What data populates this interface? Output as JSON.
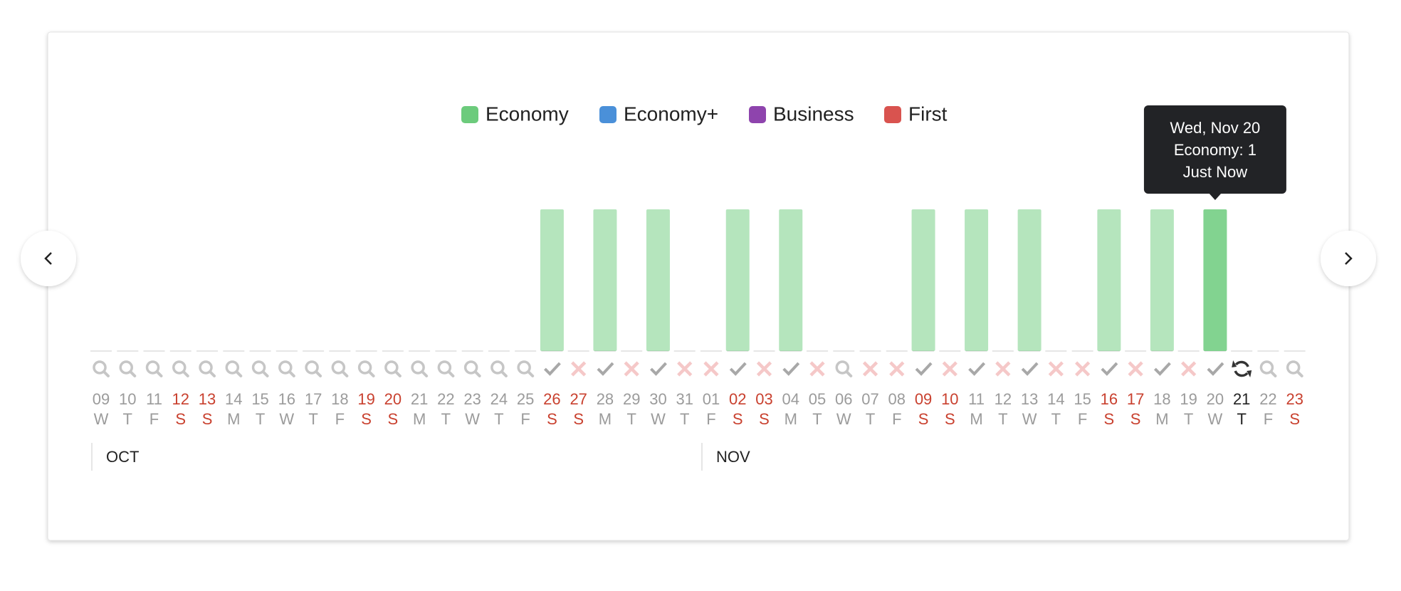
{
  "chart_data": {
    "type": "bar",
    "categories": [
      "09",
      "10",
      "11",
      "12",
      "13",
      "14",
      "15",
      "16",
      "17",
      "18",
      "19",
      "20",
      "21",
      "22",
      "23",
      "24",
      "25",
      "26",
      "27",
      "28",
      "29",
      "30",
      "31",
      "01",
      "02",
      "03",
      "04",
      "05",
      "06",
      "07",
      "08",
      "09",
      "10",
      "11",
      "12",
      "13",
      "14",
      "15",
      "16",
      "17",
      "18",
      "19",
      "20",
      "21",
      "22",
      "23"
    ],
    "weekdays": [
      "W",
      "T",
      "F",
      "S",
      "S",
      "M",
      "T",
      "W",
      "T",
      "F",
      "S",
      "S",
      "M",
      "T",
      "W",
      "T",
      "F",
      "S",
      "S",
      "M",
      "T",
      "W",
      "T",
      "F",
      "S",
      "S",
      "M",
      "T",
      "W",
      "T",
      "F",
      "S",
      "S",
      "M",
      "T",
      "W",
      "T",
      "F",
      "S",
      "S",
      "M",
      "T",
      "W",
      "T",
      "F",
      "S"
    ],
    "weekend": [
      false,
      false,
      false,
      true,
      true,
      false,
      false,
      false,
      false,
      false,
      true,
      true,
      false,
      false,
      false,
      false,
      false,
      true,
      true,
      false,
      false,
      false,
      false,
      false,
      true,
      true,
      false,
      false,
      false,
      false,
      false,
      true,
      true,
      false,
      false,
      false,
      false,
      false,
      true,
      true,
      false,
      false,
      false,
      false,
      false,
      true
    ],
    "status": [
      "search",
      "search",
      "search",
      "search",
      "search",
      "search",
      "search",
      "search",
      "search",
      "search",
      "search",
      "search",
      "search",
      "search",
      "search",
      "search",
      "search",
      "check",
      "cross",
      "check",
      "cross",
      "check",
      "cross",
      "cross",
      "check",
      "cross",
      "check",
      "cross",
      "search",
      "cross",
      "cross",
      "check",
      "cross",
      "check",
      "cross",
      "check",
      "cross",
      "cross",
      "check",
      "cross",
      "check",
      "cross",
      "check",
      "refresh",
      "search",
      "search"
    ],
    "months": [
      {
        "label": "OCT",
        "start": 0
      },
      {
        "label": "NOV",
        "start": 23
      }
    ],
    "series": [
      {
        "name": "Economy",
        "color": "#6ccb7c",
        "values": [
          0,
          0,
          0,
          0,
          0,
          0,
          0,
          0,
          0,
          0,
          0,
          0,
          0,
          0,
          0,
          0,
          0,
          1,
          0,
          1,
          0,
          1,
          0,
          0,
          1,
          0,
          1,
          0,
          0,
          0,
          0,
          1,
          0,
          1,
          0,
          1,
          0,
          0,
          1,
          0,
          1,
          0,
          1,
          0,
          0,
          0
        ]
      },
      {
        "name": "Economy+",
        "color": "#4a90d9",
        "values": [
          0,
          0,
          0,
          0,
          0,
          0,
          0,
          0,
          0,
          0,
          0,
          0,
          0,
          0,
          0,
          0,
          0,
          0,
          0,
          0,
          0,
          0,
          0,
          0,
          0,
          0,
          0,
          0,
          0,
          0,
          0,
          0,
          0,
          0,
          0,
          0,
          0,
          0,
          0,
          0,
          0,
          0,
          0,
          0,
          0,
          0
        ]
      },
      {
        "name": "Business",
        "color": "#8e44ad",
        "values": [
          0,
          0,
          0,
          0,
          0,
          0,
          0,
          0,
          0,
          0,
          0,
          0,
          0,
          0,
          0,
          0,
          0,
          0,
          0,
          0,
          0,
          0,
          0,
          0,
          0,
          0,
          0,
          0,
          0,
          0,
          0,
          0,
          0,
          0,
          0,
          0,
          0,
          0,
          0,
          0,
          0,
          0,
          0,
          0,
          0,
          0
        ]
      },
      {
        "name": "First",
        "color": "#d9534f",
        "values": [
          0,
          0,
          0,
          0,
          0,
          0,
          0,
          0,
          0,
          0,
          0,
          0,
          0,
          0,
          0,
          0,
          0,
          0,
          0,
          0,
          0,
          0,
          0,
          0,
          0,
          0,
          0,
          0,
          0,
          0,
          0,
          0,
          0,
          0,
          0,
          0,
          0,
          0,
          0,
          0,
          0,
          0,
          0,
          0,
          0,
          0
        ]
      }
    ],
    "ylim": [
      0,
      1
    ],
    "weekend_color": "#c9412f",
    "selected": 42,
    "tooltip": [
      "Wed, Nov 20",
      "Economy: 1",
      "Just Now"
    ]
  }
}
